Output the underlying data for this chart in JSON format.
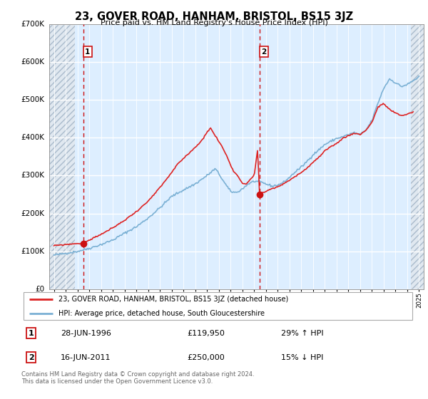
{
  "title": "23, GOVER ROAD, HANHAM, BRISTOL, BS15 3JZ",
  "subtitle": "Price paid vs. HM Land Registry's House Price Index (HPI)",
  "plot_bg_color": "#ddeeff",
  "hatch_bg_color": "#e8e8e8",
  "hatch_color": "#bbbbbb",
  "grid_color": "#ffffff",
  "ylim": [
    0,
    700000
  ],
  "yticks": [
    0,
    100000,
    200000,
    300000,
    400000,
    500000,
    600000,
    700000
  ],
  "ytick_labels": [
    "£0",
    "£100K",
    "£200K",
    "£300K",
    "£400K",
    "£500K",
    "£600K",
    "£700K"
  ],
  "xlim_start": 1993.6,
  "xlim_end": 2025.4,
  "hatch_end": 1995.8,
  "xticks": [
    1994,
    1995,
    1996,
    1997,
    1998,
    1999,
    2000,
    2001,
    2002,
    2003,
    2004,
    2005,
    2006,
    2007,
    2008,
    2009,
    2010,
    2011,
    2012,
    2013,
    2014,
    2015,
    2016,
    2017,
    2018,
    2019,
    2020,
    2021,
    2022,
    2023,
    2024,
    2025
  ],
  "sale1_x": 1996.49,
  "sale1_y": 119950,
  "sale1_label": "1",
  "sale1_date": "28-JUN-1996",
  "sale1_price": "£119,950",
  "sale1_hpi": "29% ↑ HPI",
  "sale2_x": 2011.46,
  "sale2_y": 250000,
  "sale2_label": "2",
  "sale2_date": "16-JUN-2011",
  "sale2_price": "£250,000",
  "sale2_hpi": "15% ↓ HPI",
  "red_line_color": "#dd2222",
  "blue_line_color": "#7ab0d4",
  "vline_color": "#cc1111",
  "dot_color": "#cc1111",
  "legend_label_red": "23, GOVER ROAD, HANHAM, BRISTOL, BS15 3JZ (detached house)",
  "legend_label_blue": "HPI: Average price, detached house, South Gloucestershire",
  "footer": "Contains HM Land Registry data © Crown copyright and database right 2024.\nThis data is licensed under the Open Government Licence v3.0."
}
